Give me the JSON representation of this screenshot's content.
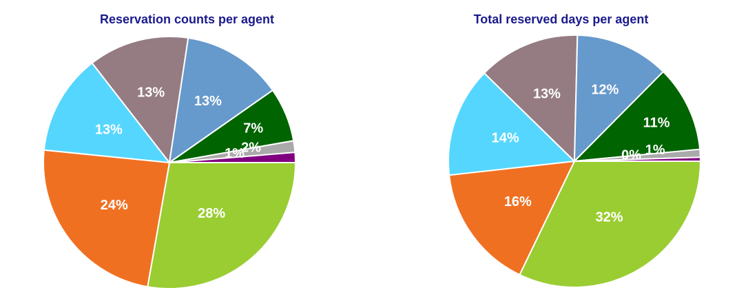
{
  "chart_data": [
    {
      "type": "pie",
      "title": "Reservation counts per agent",
      "slices": [
        {
          "value": 28,
          "label": "28%",
          "color": "#9acd32"
        },
        {
          "value": 24,
          "label": "24%",
          "color": "#f07022"
        },
        {
          "value": 13,
          "label": "13%",
          "color": "#55d6ff"
        },
        {
          "value": 13,
          "label": "13%",
          "color": "#947c82"
        },
        {
          "value": 13,
          "label": "13%",
          "color": "#6699cc"
        },
        {
          "value": 7,
          "label": "7%",
          "color": "#006400"
        },
        {
          "value": 1.5,
          "label": "2%",
          "color": "#aaaaaa"
        },
        {
          "value": 1.3,
          "label": "1%",
          "color": "#800080"
        }
      ]
    },
    {
      "type": "pie",
      "title": "Total reserved days per agent",
      "slices": [
        {
          "value": 32,
          "label": "32%",
          "color": "#9acd32"
        },
        {
          "value": 16,
          "label": "16%",
          "color": "#f07022"
        },
        {
          "value": 14,
          "label": "14%",
          "color": "#55d6ff"
        },
        {
          "value": 13,
          "label": "13%",
          "color": "#947c82"
        },
        {
          "value": 12,
          "label": "12%",
          "color": "#6699cc"
        },
        {
          "value": 11,
          "label": "11%",
          "color": "#006400"
        },
        {
          "value": 1,
          "label": "1%",
          "color": "#aaaaaa"
        },
        {
          "value": 0.5,
          "label": "0%",
          "color": "#800080"
        }
      ]
    }
  ]
}
